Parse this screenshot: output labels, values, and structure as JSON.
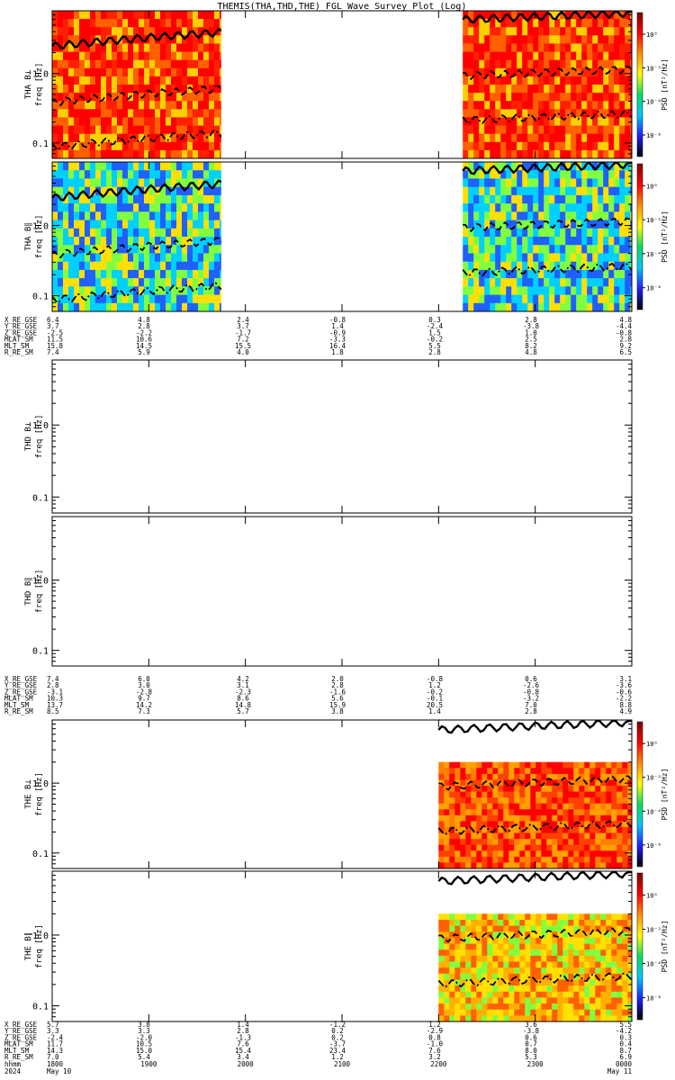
{
  "title": "THEMIS(THA,THD,THE) FGL Wave Survey Plot (Log)",
  "colorbar": {
    "label": "PSD [nT²/Hz]",
    "tick_labels": [
      "10⁰",
      "10⁻²",
      "10⁻⁴",
      "10⁻⁶"
    ],
    "stops": [
      "#000000",
      "#2020ff",
      "#00c8ff",
      "#00e060",
      "#ffff00",
      "#ff9000",
      "#ff0000",
      "#800000"
    ]
  },
  "chart_data": [
    {
      "type": "heatmap",
      "probe": "THA",
      "component": "B⊥",
      "ylabel_probe": "THA B⊥",
      "ylabel_freq": "freq [Hz]",
      "yscale": "log",
      "ylim": [
        0.06,
        8
      ],
      "y_tick_labels": [
        "1.0",
        "0.1"
      ],
      "x_range_hhmm": [
        "1800",
        "0000"
      ],
      "data_coverage": [
        [
          "1800",
          "1945"
        ],
        [
          "2215",
          "0000"
        ]
      ],
      "dominant_color": "red-yellow",
      "overlay_lines": [
        "solid",
        "dashed",
        "dash-dot"
      ]
    },
    {
      "type": "heatmap",
      "probe": "THA",
      "component": "B∥",
      "ylabel_probe": "THA B∥",
      "ylabel_freq": "freq [Hz]",
      "yscale": "log",
      "ylim": [
        0.06,
        8
      ],
      "y_tick_labels": [
        "1.0",
        "0.1"
      ],
      "x_range_hhmm": [
        "1800",
        "0000"
      ],
      "data_coverage": [
        [
          "1800",
          "1945"
        ],
        [
          "2215",
          "0000"
        ]
      ],
      "dominant_color": "yellow-green-blue",
      "overlay_lines": [
        "solid",
        "dashed",
        "dash-dot"
      ]
    },
    {
      "type": "heatmap",
      "probe": "THD",
      "component": "B⊥",
      "ylabel_probe": "THD B⊥",
      "ylabel_freq": "freq [Hz]",
      "yscale": "log",
      "ylim": [
        0.06,
        8
      ],
      "y_tick_labels": [
        "1.0",
        "0.1"
      ],
      "data_coverage": []
    },
    {
      "type": "heatmap",
      "probe": "THD",
      "component": "B∥",
      "ylabel_probe": "THD B∥",
      "ylabel_freq": "freq [Hz]",
      "yscale": "log",
      "ylim": [
        0.06,
        8
      ],
      "y_tick_labels": [
        "1.0",
        "0.1"
      ],
      "data_coverage": []
    },
    {
      "type": "heatmap",
      "probe": "THE",
      "component": "B⊥",
      "ylabel_probe": "THE B⊥",
      "ylabel_freq": "freq [Hz]",
      "yscale": "log",
      "ylim": [
        0.06,
        8
      ],
      "y_tick_labels": [
        "1.0",
        "0.1"
      ],
      "x_range_hhmm": [
        "1800",
        "0000"
      ],
      "data_coverage": [
        [
          "2200",
          "0000"
        ]
      ],
      "data_freq_max_hz": 2,
      "dominant_color": "orange-red",
      "overlay_lines": [
        "solid",
        "dashed",
        "dash-dot"
      ]
    },
    {
      "type": "heatmap",
      "probe": "THE",
      "component": "B∥",
      "ylabel_probe": "THE B∥",
      "ylabel_freq": "freq [Hz]",
      "yscale": "log",
      "ylim": [
        0.06,
        8
      ],
      "y_tick_labels": [
        "1.0",
        "0.1"
      ],
      "x_range_hhmm": [
        "1800",
        "0000"
      ],
      "data_coverage": [
        [
          "2200",
          "0000"
        ]
      ],
      "data_freq_max_hz": 2,
      "dominant_color": "yellow-orange",
      "overlay_lines": [
        "solid",
        "dashed",
        "dash-dot"
      ]
    }
  ],
  "ephemeris": [
    {
      "probe": "THA",
      "rows": [
        {
          "label": "X_RE_GSE",
          "values": [
            "6.4",
            "4.8",
            "2.4",
            "-0.8",
            "0.3",
            "2.8",
            "4.8"
          ]
        },
        {
          "label": "Y_RE_GSE",
          "values": [
            "3.7",
            "2.8",
            "3.7",
            "1.4",
            "-2.4",
            "-3.8",
            "-4.4"
          ]
        },
        {
          "label": "Z_RE_GSE",
          "values": [
            "-2.5",
            "-2.2",
            "-1.7",
            "-0.9",
            "1.5",
            "1.0",
            "-0.8"
          ]
        },
        {
          "label": "MLAT_SM",
          "values": [
            "11.5",
            "10.6",
            "7.2",
            "-3.3",
            "-0.2",
            "2.5",
            "2.8"
          ]
        },
        {
          "label": "MLT_SM",
          "values": [
            "15.8",
            "14.5",
            "15.5",
            "16.4",
            "5.5",
            "8.2",
            "9.2"
          ]
        },
        {
          "label": "R_RE_SM",
          "values": [
            "7.4",
            "5.9",
            "4.0",
            "1.8",
            "2.8",
            "4.8",
            "6.5"
          ]
        }
      ]
    },
    {
      "probe": "THD",
      "rows": [
        {
          "label": "X_RE_GSE",
          "values": [
            "7.4",
            "6.0",
            "4.2",
            "2.0",
            "-0.8",
            "0.6",
            "3.1"
          ]
        },
        {
          "label": "Y_RE_GSE",
          "values": [
            "2.8",
            "3.0",
            "3.1",
            "2.8",
            "1.2",
            "-2.6",
            "-3.6"
          ]
        },
        {
          "label": "Z_RE_GSE",
          "values": [
            "-3.1",
            "-2.8",
            "-2.3",
            "-1.6",
            "-0.2",
            "-0.8",
            "-0.6"
          ]
        },
        {
          "label": "MLAT_SM",
          "values": [
            "10.3",
            "9.7",
            "8.6",
            "5.6",
            "-0.1",
            "-3.2",
            "-2.2"
          ]
        },
        {
          "label": "MLT_SM",
          "values": [
            "13.7",
            "14.2",
            "14.8",
            "15.9",
            "20.5",
            "7.0",
            "8.8"
          ]
        },
        {
          "label": "R_RE_SM",
          "values": [
            "8.5",
            "7.3",
            "5.7",
            "3.8",
            "1.4",
            "2.8",
            "4.9"
          ]
        }
      ]
    },
    {
      "probe": "THE",
      "rows": [
        {
          "label": "X_RE_GSE",
          "values": [
            "5.7",
            "3.8",
            "1.4",
            "-1.2",
            "1.2",
            "3.6",
            "5.5"
          ]
        },
        {
          "label": "Y_RE_GSE",
          "values": [
            "3.3",
            "3.3",
            "2.8",
            "0.2",
            "-2.9",
            "-3.8",
            "-4.2"
          ]
        },
        {
          "label": "Z_RE_GSE",
          "values": [
            "-2.4",
            "-2.0",
            "-1.3",
            "0.2",
            "0.8",
            "0.6",
            "0.3"
          ]
        },
        {
          "label": "MLAT_SM",
          "values": [
            "11.7",
            "10.5",
            "7.6",
            "-3.7",
            "-1.0",
            "0.7",
            "0.4"
          ]
        },
        {
          "label": "MLT_SM",
          "values": [
            "14.3",
            "15.0",
            "15.4",
            "23.4",
            "7.6",
            "8.0",
            "8.7"
          ]
        },
        {
          "label": "R_RE_SM",
          "values": [
            "7.0",
            "5.4",
            "3.4",
            "1.2",
            "3.2",
            "5.3",
            "6.9"
          ]
        }
      ]
    }
  ],
  "time_axis": {
    "label_hhmm": "hhmm",
    "label_year": "2024",
    "ticks": [
      "1800",
      "1900",
      "2000",
      "2100",
      "2200",
      "2300",
      "0000"
    ],
    "date_start": "May 10",
    "date_end": "May 11"
  }
}
